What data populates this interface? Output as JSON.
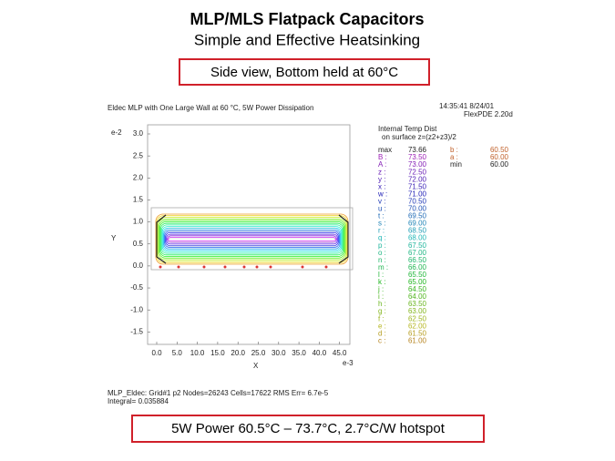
{
  "slide": {
    "title": "MLP/MLS Flatpack Capacitors",
    "subtitle": "Simple and Effective Heatsinking",
    "caption_top": "Side view, Bottom held at 60°C",
    "caption_bottom": "5W Power 60.5°C – 73.7°C, 2.7°C/W hotspot"
  },
  "plot": {
    "header": "Eldec MLP with One Large Wall at 60 °C, 5W Power Dissipation",
    "timestamp": "14:35:41 8/24/01",
    "software": "FlexPDE 2.20d",
    "y_axis_label": "Y",
    "y_exponent": "e-2",
    "yticks": [
      "3.0",
      "2.5",
      "2.0",
      "1.5",
      "1.0",
      "0.5",
      "0.0",
      "-0.5",
      "-1.0",
      "-1.5"
    ],
    "x_axis_label": "X",
    "x_exponent": "e-3",
    "xticks": [
      "0.0",
      "5.0",
      "10.0",
      "15.0",
      "20.0",
      "25.0",
      "30.0",
      "35.0",
      "40.0",
      "45.0"
    ],
    "legend": {
      "title": "Internal Temp Dist",
      "subtitle": "on surface z=(z2+z3)/2",
      "rows": [
        [
          "max",
          "73.66"
        ],
        [
          "B :",
          "73.50"
        ],
        [
          "A :",
          "73.00"
        ],
        [
          "z :",
          "72.50"
        ],
        [
          "y :",
          "72.00"
        ],
        [
          "x :",
          "71.50"
        ],
        [
          "w :",
          "71.00"
        ],
        [
          "v :",
          "70.50"
        ],
        [
          "u :",
          "70.00"
        ],
        [
          "t :",
          "69.50"
        ],
        [
          "s :",
          "69.00"
        ],
        [
          "r :",
          "68.50"
        ],
        [
          "q :",
          "68.00"
        ],
        [
          "p :",
          "67.50"
        ],
        [
          "o :",
          "67.00"
        ],
        [
          "n :",
          "66.50"
        ],
        [
          "m :",
          "66.00"
        ],
        [
          "l :",
          "65.50"
        ],
        [
          "k :",
          "65.00"
        ],
        [
          "j :",
          "64.50"
        ],
        [
          "i :",
          "64.00"
        ],
        [
          "h :",
          "63.50"
        ],
        [
          "g :",
          "63.00"
        ],
        [
          "f :",
          "62.50"
        ],
        [
          "e :",
          "62.00"
        ],
        [
          "d :",
          "61.50"
        ],
        [
          "c :",
          "61.00"
        ]
      ],
      "extra": [
        [
          "b :",
          "60.50"
        ],
        [
          "a :",
          "60.00"
        ],
        [
          "min",
          "60.00"
        ]
      ]
    },
    "footer": [
      "MLP_Eldec:  Grid#1  p2  Nodes=26243  Cells=17622  RMS Err= 6.7e-5",
      "Integral= 0.035884"
    ]
  }
}
